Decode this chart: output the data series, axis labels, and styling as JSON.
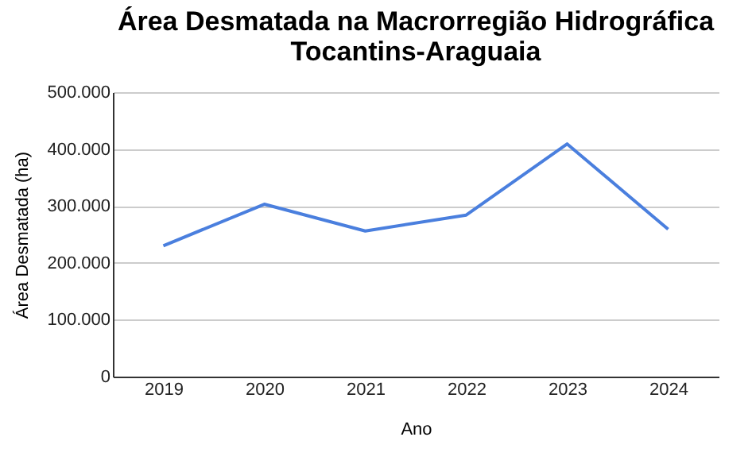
{
  "chart_data": {
    "type": "line",
    "title": "Área Desmatada na Macrorregião Hidrográfica\nTocantins-Araguaia",
    "xlabel": "Ano",
    "ylabel": "Área Desmatada (ha)",
    "categories": [
      "2019",
      "2020",
      "2021",
      "2022",
      "2023",
      "2024"
    ],
    "series": [
      {
        "color": "#4a7fde",
        "values": [
          230000,
          303000,
          256000,
          284000,
          409000,
          259000
        ]
      }
    ],
    "ylim": [
      0,
      500000
    ],
    "yticks": [
      {
        "value": 0,
        "label": "0"
      },
      {
        "value": 100000,
        "label": "100.000"
      },
      {
        "value": 200000,
        "label": "200.000"
      },
      {
        "value": 300000,
        "label": "300.000"
      },
      {
        "value": 400000,
        "label": "400.000"
      },
      {
        "value": 500000,
        "label": "500.000"
      }
    ],
    "grid": "y",
    "legend": false,
    "marker": "none",
    "line_style": "solid"
  }
}
